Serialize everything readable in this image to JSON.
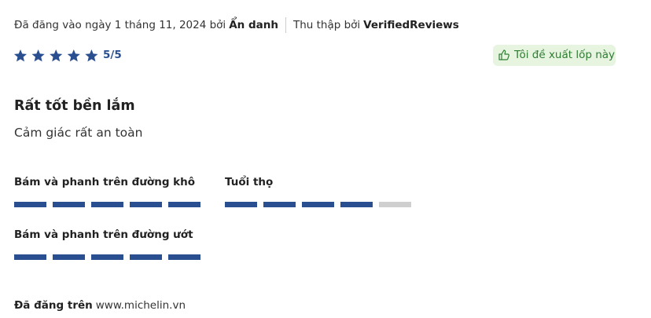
{
  "meta": {
    "posted_prefix": "Đã đăng vào ngày 1 tháng 11, 2024 bởi",
    "author": "Ẩn danh",
    "collected_prefix": "Thu thập bởi",
    "collector": "VerifiedReviews"
  },
  "rating": {
    "value": 5,
    "max": 5,
    "label": "5/5"
  },
  "recommend_button": "Tôi đề xuất lốp này",
  "review": {
    "title": "Rất tốt bền lắm",
    "body": "Cảm giác rất an toàn"
  },
  "criteria": [
    {
      "label": "Bám và phanh trên đường khô",
      "score": 5,
      "max": 5
    },
    {
      "label": "Tuổi thọ",
      "score": 4,
      "max": 5
    },
    {
      "label": "Bám và phanh trên đường ướt",
      "score": 5,
      "max": 5
    }
  ],
  "footer": {
    "prefix": "Đã đăng trên",
    "site": "www.michelin.vn"
  }
}
